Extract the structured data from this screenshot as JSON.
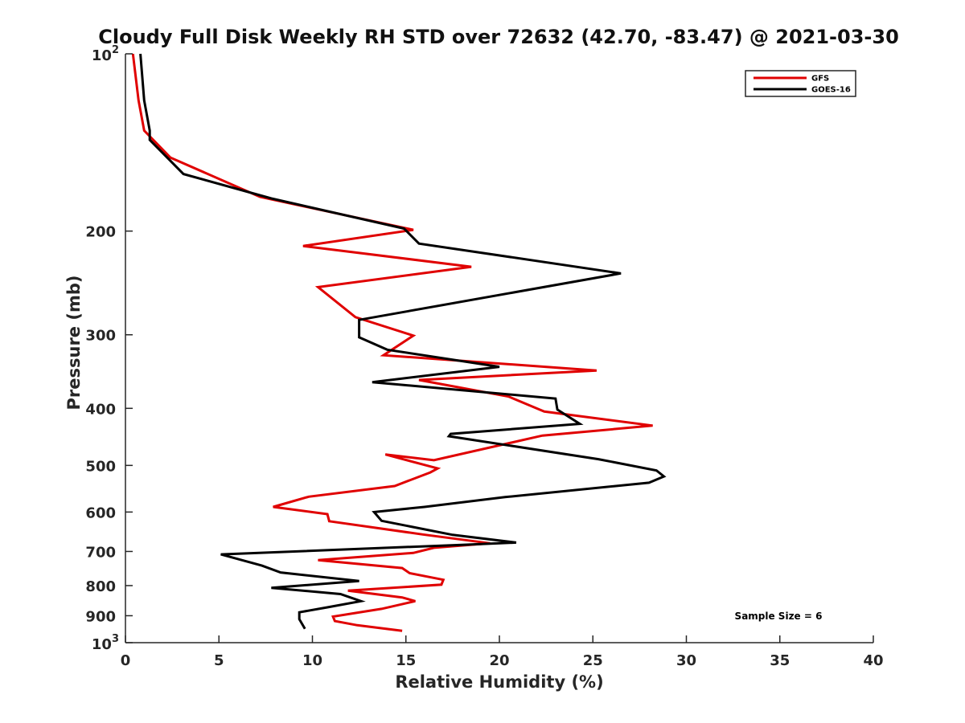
{
  "chart_data": {
    "type": "line",
    "title": "Cloudy Full Disk Weekly RH STD over 72632 (42.70, -83.47) @ 2021-03-30",
    "xlabel": "Relative Humidity (%)",
    "ylabel": "Pressure (mb)",
    "xlim": [
      0,
      40
    ],
    "ylim": [
      100,
      1000
    ],
    "yscale": "log",
    "y_reversed": true,
    "x_ticks": [
      {
        "value": 0,
        "label": "0"
      },
      {
        "value": 5,
        "label": "5"
      },
      {
        "value": 10,
        "label": "10"
      },
      {
        "value": 15,
        "label": "15"
      },
      {
        "value": 20,
        "label": "20"
      },
      {
        "value": 25,
        "label": "25"
      },
      {
        "value": 30,
        "label": "30"
      },
      {
        "value": 35,
        "label": "35"
      },
      {
        "value": 40,
        "label": "40"
      }
    ],
    "y_ticks": [
      {
        "value": 100,
        "label": "",
        "base": "10",
        "exp": "2"
      },
      {
        "value": 200,
        "label": "200"
      },
      {
        "value": 300,
        "label": "300"
      },
      {
        "value": 400,
        "label": "400"
      },
      {
        "value": 500,
        "label": "500"
      },
      {
        "value": 600,
        "label": "600"
      },
      {
        "value": 700,
        "label": "700"
      },
      {
        "value": 800,
        "label": "800"
      },
      {
        "value": 900,
        "label": "900"
      },
      {
        "value": 1000,
        "label": "",
        "base": "10",
        "exp": "3"
      }
    ],
    "grid": false,
    "legend_position": "top-right",
    "series": [
      {
        "name": "GFS",
        "color": "#e00000",
        "points": [
          [
            0.4,
            100
          ],
          [
            0.7,
            120
          ],
          [
            1.0,
            135
          ],
          [
            2.4,
            150
          ],
          [
            7.2,
            175
          ],
          [
            15.4,
            199
          ],
          [
            9.5,
            212
          ],
          [
            18.5,
            230
          ],
          [
            10.3,
            249
          ],
          [
            12.3,
            280
          ],
          [
            15.4,
            301
          ],
          [
            13.8,
            325
          ],
          [
            25.2,
            345
          ],
          [
            15.7,
            358
          ],
          [
            20.5,
            382
          ],
          [
            22.4,
            405
          ],
          [
            28.2,
            428
          ],
          [
            22.3,
            445
          ],
          [
            16.5,
            490
          ],
          [
            13.9,
            479
          ],
          [
            16.7,
            506
          ],
          [
            16.3,
            514
          ],
          [
            14.4,
            542
          ],
          [
            9.8,
            565
          ],
          [
            7.9,
            588
          ],
          [
            10.8,
            605
          ],
          [
            10.9,
            622
          ],
          [
            15.9,
            655
          ],
          [
            19.5,
            678
          ],
          [
            16.5,
            690
          ],
          [
            15.4,
            704
          ],
          [
            10.3,
            724
          ],
          [
            14.8,
            747
          ],
          [
            15.2,
            762
          ],
          [
            17.0,
            782
          ],
          [
            16.9,
            797
          ],
          [
            11.9,
            816
          ],
          [
            14.8,
            838
          ],
          [
            15.5,
            850
          ],
          [
            13.7,
            876
          ],
          [
            11.1,
            903
          ],
          [
            11.2,
            919
          ],
          [
            12.4,
            934
          ],
          [
            14.8,
            955
          ]
        ]
      },
      {
        "name": "GOES-16",
        "color": "#000000",
        "points": [
          [
            0.8,
            100
          ],
          [
            1.0,
            120
          ],
          [
            1.3,
            135
          ],
          [
            1.3,
            140
          ],
          [
            3.1,
            160
          ],
          [
            7.8,
            176
          ],
          [
            14.9,
            198
          ],
          [
            15.7,
            210
          ],
          [
            26.5,
            236
          ],
          [
            12.5,
            283
          ],
          [
            12.5,
            303
          ],
          [
            14.0,
            318
          ],
          [
            20.0,
            340
          ],
          [
            13.2,
            361
          ],
          [
            23.0,
            385
          ],
          [
            23.1,
            402
          ],
          [
            24.3,
            425
          ],
          [
            17.4,
            442
          ],
          [
            17.3,
            446
          ],
          [
            25.3,
            488
          ],
          [
            28.4,
            510
          ],
          [
            28.8,
            522
          ],
          [
            28.0,
            535
          ],
          [
            20.3,
            566
          ],
          [
            16.0,
            588
          ],
          [
            13.3,
            600
          ],
          [
            13.7,
            621
          ],
          [
            17.5,
            656
          ],
          [
            20.9,
            676
          ],
          [
            18.0,
            682
          ],
          [
            5.1,
            708
          ],
          [
            7.3,
            740
          ],
          [
            8.3,
            760
          ],
          [
            12.5,
            786
          ],
          [
            7.8,
            807
          ],
          [
            11.5,
            827
          ],
          [
            12.6,
            850
          ],
          [
            10.8,
            871
          ],
          [
            9.3,
            888
          ],
          [
            9.3,
            912
          ],
          [
            9.6,
            947
          ]
        ]
      }
    ],
    "annotation": "Sample Size = 6"
  }
}
